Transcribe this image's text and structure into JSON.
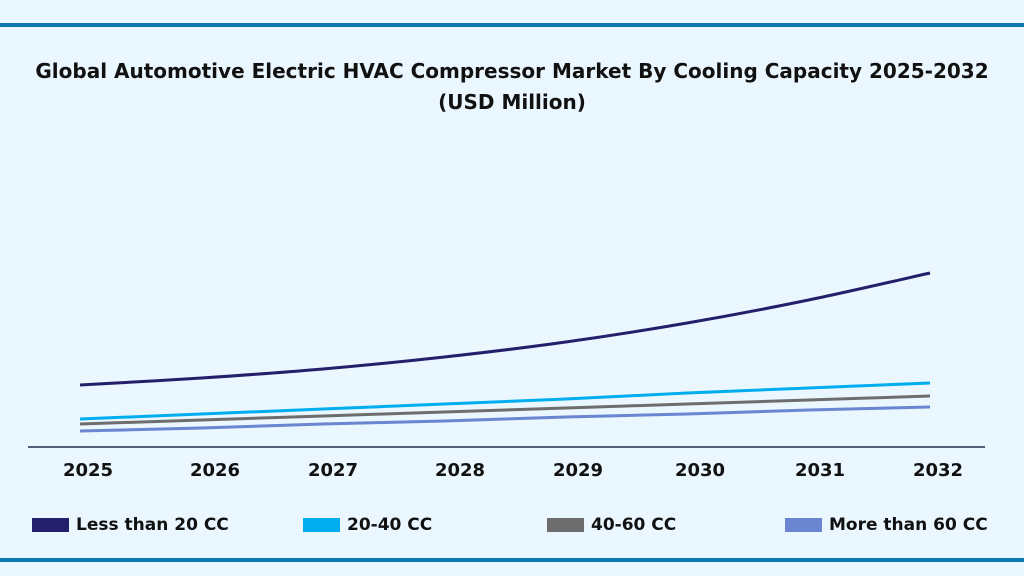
{
  "chart_data": {
    "type": "line",
    "title": "Global Automotive Electric HVAC Compressor Market By Cooling Capacity 2025-2032",
    "subtitle": "(USD Million)",
    "xlabel": "",
    "ylabel": "",
    "categories": [
      "2025",
      "2026",
      "2027",
      "2028",
      "2029",
      "2030",
      "2031",
      "2032"
    ],
    "ylim": [
      0,
      180
    ],
    "grid": false,
    "legend_position": "bottom",
    "series": [
      {
        "name": "Less than 20 CC",
        "color": "#241f6b",
        "values": [
          62,
          69,
          78,
          90,
          105,
          124,
          147,
          174
        ]
      },
      {
        "name": "20-40 CC",
        "color": "#00aeef",
        "values": [
          28,
          33,
          38,
          43,
          48,
          54,
          59,
          64
        ]
      },
      {
        "name": "40-60 CC",
        "color": "#6d6d6d",
        "values": [
          23,
          27,
          31,
          35,
          39,
          43,
          47,
          51
        ]
      },
      {
        "name": "More than 60 CC",
        "color": "#6a86d0",
        "values": [
          16,
          19,
          23,
          26,
          30,
          33,
          37,
          40
        ]
      }
    ]
  },
  "colors": {
    "background": "#eaf7fe",
    "border": "#0a77b5",
    "axis": "#1f2a4a"
  }
}
